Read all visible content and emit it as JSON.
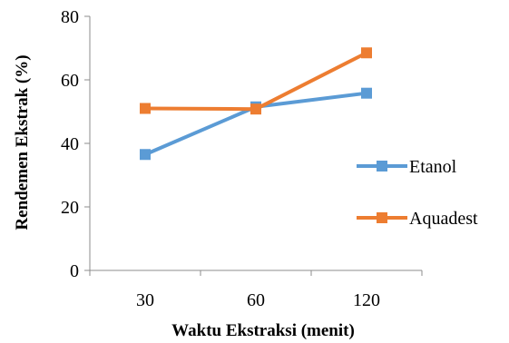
{
  "chart_data": {
    "type": "line",
    "categories": [
      "30",
      "60",
      "120"
    ],
    "series": [
      {
        "name": "Etanol",
        "values": [
          36.5,
          51.5,
          55.8
        ],
        "color": "#5B9BD5"
      },
      {
        "name": "Aquadest",
        "values": [
          51.0,
          50.8,
          68.5
        ],
        "color": "#ED7D31"
      }
    ],
    "xlabel": "Waktu Ekstraksi (menit)",
    "ylabel": "Rendemen Ekstrak (%)",
    "ylim": [
      0,
      80
    ],
    "yticks": [
      "0",
      "20",
      "40",
      "60",
      "80"
    ],
    "grid": false,
    "legend_position": "right",
    "marker": "square"
  }
}
